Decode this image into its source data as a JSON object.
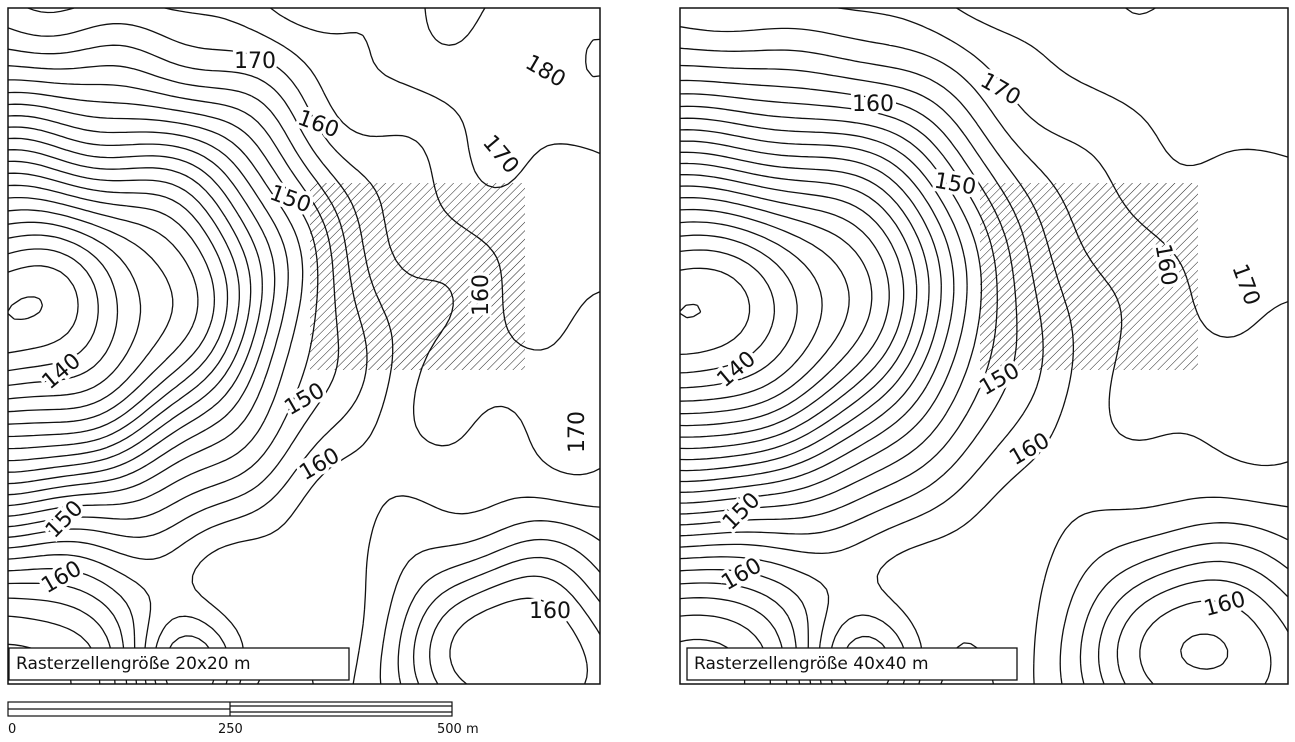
{
  "panels": [
    {
      "caption": "Rasterzellengröße 20x20 m",
      "contour_labels": [
        "170",
        "180",
        "160",
        "170",
        "150",
        "160",
        "140",
        "150",
        "160",
        "170",
        "150",
        "160",
        "160"
      ]
    },
    {
      "caption": "Rasterzellengröße 40x40 m",
      "contour_labels": [
        "160",
        "170",
        "150",
        "160",
        "170",
        "140",
        "150",
        "160",
        "150",
        "160",
        "160"
      ]
    }
  ],
  "scale_bar": {
    "labels": [
      "0",
      "250",
      "500 m"
    ]
  }
}
